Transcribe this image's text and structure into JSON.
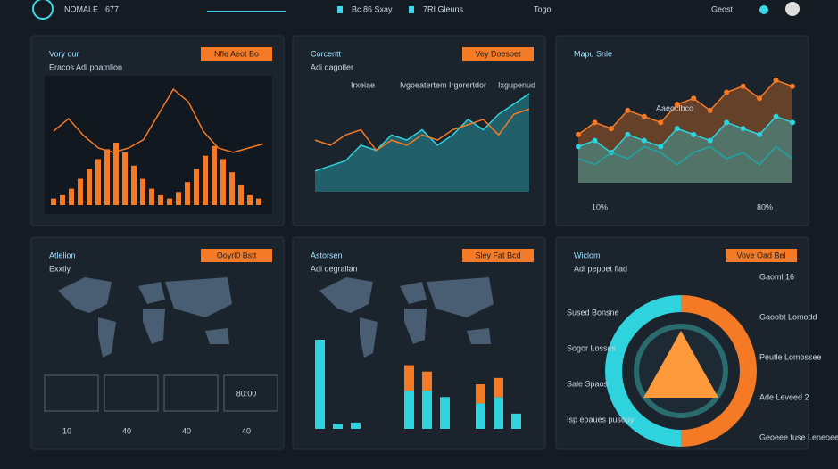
{
  "header": {
    "brand": "NOMALE",
    "count": "677",
    "nav": [
      "Bc 86 Sxay",
      "7RI Gleuns",
      "Togo"
    ],
    "user": "Geost"
  },
  "panels": [
    {
      "title": "Vory our",
      "button": "Nfle Aeot Bo",
      "subtitle": "Eracos Adi poatnlion",
      "bars": [
        10,
        15,
        25,
        40,
        55,
        70,
        85,
        95,
        80,
        60,
        40,
        25,
        15,
        10,
        20,
        35,
        55,
        75,
        90,
        70,
        50,
        30,
        15,
        10
      ],
      "line": [
        40,
        55,
        35,
        20,
        15,
        20,
        30,
        60,
        90,
        75,
        40,
        20,
        15,
        20,
        25
      ]
    },
    {
      "title": "Corcentt",
      "button": "Vey Doesoet",
      "subtitle": "Adi dagotler",
      "legend": [
        "Irxeiae",
        "Ivgoeatertem",
        "Irgorertdor",
        "Ixgupenud"
      ],
      "area": [
        20,
        25,
        30,
        45,
        40,
        55,
        50,
        60,
        45,
        55,
        70,
        60,
        75,
        85,
        95
      ],
      "line": [
        50,
        45,
        55,
        60,
        40,
        50,
        45,
        55,
        50,
        60,
        65,
        70,
        55,
        75,
        80
      ]
    },
    {
      "title": "Mapu Snle",
      "legend": "Aaeoclbco",
      "stats": [
        "10%",
        "80%"
      ],
      "orange": [
        40,
        50,
        45,
        60,
        55,
        50,
        65,
        70,
        60,
        75,
        80,
        70,
        85,
        80
      ],
      "teal": [
        30,
        35,
        25,
        40,
        35,
        30,
        45,
        40,
        35,
        50,
        45,
        40,
        55,
        50
      ],
      "teal2": [
        20,
        15,
        25,
        20,
        30,
        25,
        15,
        25,
        30,
        20,
        25,
        15,
        30,
        20
      ]
    },
    {
      "title": "Atlelion",
      "button": "Ooyrl0 Bstt",
      "subtitle": "Exxtly",
      "clock": "80:00",
      "counts": [
        "10",
        "40",
        "40",
        "40"
      ]
    },
    {
      "title": "Astorsen",
      "button": "Sley Fat Bcd",
      "subtitle": "Adi degrallan",
      "teal": [
        70,
        4,
        5,
        0,
        0,
        30,
        30,
        25,
        0,
        20,
        25,
        12
      ],
      "orange": [
        0,
        0,
        0,
        0,
        0,
        20,
        15,
        0,
        0,
        15,
        15,
        0
      ]
    },
    {
      "title": "Wiclom",
      "button": "Vove Oad Bel",
      "subtitle": "Adi pepoet flad",
      "segments": [
        50,
        50
      ],
      "left": [
        "Sused Bonsne",
        "Sogor Losses",
        "Sale Spaos",
        "Isp eoaues pusouy"
      ],
      "right": [
        "Gaoml 16",
        "Gaoobt Lomodd",
        "Peutle Lomossee",
        "Ade Leveed 2",
        "Geoeee fuse Leneoee"
      ]
    }
  ]
}
